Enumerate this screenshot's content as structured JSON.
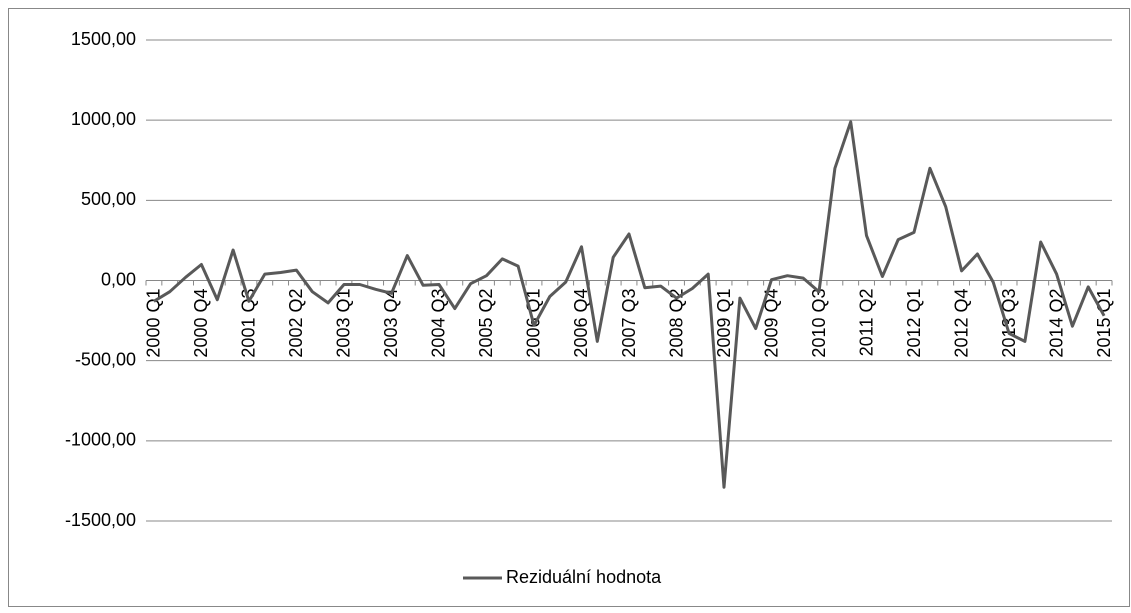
{
  "chart_data": {
    "type": "line",
    "categories": [
      "2000 Q1",
      null,
      null,
      "2000 Q4",
      null,
      null,
      "2001 Q3",
      null,
      null,
      "2002 Q2",
      null,
      null,
      "2003 Q1",
      null,
      null,
      "2003 Q4",
      null,
      null,
      "2004 Q3",
      null,
      null,
      "2005 Q2",
      null,
      null,
      "2006 Q1",
      null,
      null,
      "2006 Q4",
      null,
      null,
      "2007 Q3",
      null,
      null,
      "2008 Q2",
      null,
      null,
      "2009 Q1",
      null,
      null,
      "2009 Q4",
      null,
      null,
      "2010 Q3",
      null,
      null,
      "2011 Q2",
      null,
      null,
      "2012 Q1",
      null,
      null,
      "2012 Q4",
      null,
      null,
      "2013 Q3",
      null,
      null,
      "2014 Q2",
      null,
      null,
      "2015 Q1"
    ],
    "series": [
      {
        "name": "Reziduální hodnota",
        "color": "#595959",
        "values": [
          -130,
          -70,
          20,
          100,
          -120,
          190,
          -130,
          40,
          50,
          65,
          -70,
          -140,
          -25,
          -25,
          -55,
          -80,
          155,
          -30,
          -25,
          -175,
          -20,
          30,
          135,
          90,
          -280,
          -100,
          -10,
          210,
          -380,
          145,
          290,
          -45,
          -35,
          -110,
          -50,
          40,
          -1290,
          -110,
          -300,
          5,
          30,
          15,
          -70,
          700,
          990,
          280,
          25,
          255,
          300,
          700,
          460,
          60,
          165,
          -10,
          -330,
          -380,
          240,
          40,
          -285,
          -40,
          -220
        ]
      }
    ],
    "ylim": [
      -1500,
      1500
    ],
    "yticks": [
      {
        "value": -1500,
        "label": "-1500,00"
      },
      {
        "value": -1000,
        "label": "-1000,00"
      },
      {
        "value": -500,
        "label": "-500,00"
      },
      {
        "value": 0,
        "label": "0,00"
      },
      {
        "value": 500,
        "label": "500,00"
      },
      {
        "value": 1000,
        "label": "1000,00"
      },
      {
        "value": 1500,
        "label": "1500,00"
      }
    ],
    "grid": true,
    "legend": "bottom"
  }
}
